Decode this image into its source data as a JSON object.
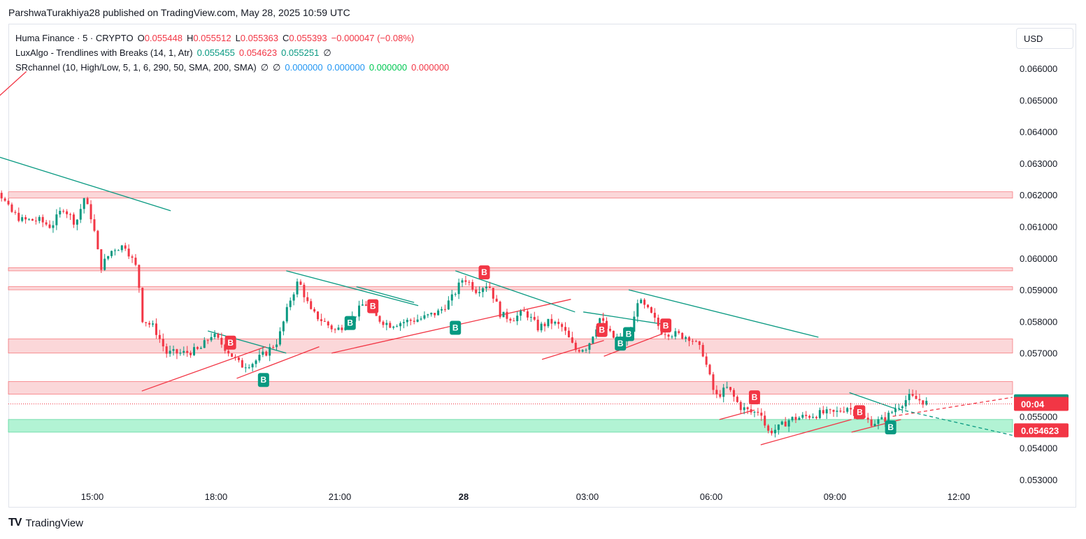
{
  "header": {
    "text": "ParshwaTurakhiya28 published on TradingView.com, May 28, 2025 10:59 UTC"
  },
  "legend": {
    "symbol": "Huma Finance · 5 · CRYPTO",
    "o_label": "O",
    "o_value": "0.055448",
    "h_label": "H",
    "h_value": "0.055512",
    "l_label": "L",
    "l_value": "0.055363",
    "c_label": "C",
    "c_value": "0.055393",
    "change": "−0.000047 (−0.08%)",
    "lux_name": "LuxAlgo - Trendlines with Breaks (14, 1, Atr)",
    "lux_v1": "0.055455",
    "lux_v2": "0.054623",
    "lux_v3": "0.055251",
    "lux_sym": "∅",
    "sr_name": "SRchannel (10, High/Low, 5, 1, 6, 290, 50, SMA, 200, SMA)",
    "sr_sym1": "∅",
    "sr_sym2": "∅",
    "sr_v1": "0.000000",
    "sr_v2": "0.000000",
    "sr_v3": "0.000000",
    "sr_v4": "0.000000"
  },
  "currency": "USD",
  "footer": {
    "brand": "TradingView",
    "mark": "TV"
  },
  "colors": {
    "up": "#089981",
    "down": "#f23645",
    "zone_red": "#f8b6b9",
    "zone_green": "#9ff0c9",
    "trend_teal": "#089981",
    "trend_red": "#f23645"
  },
  "chart_data": {
    "type": "candlestick",
    "y_axis": {
      "ticks": [
        "0.066000",
        "0.065000",
        "0.064000",
        "0.063000",
        "0.062000",
        "0.061000",
        "0.060000",
        "0.059000",
        "0.058000",
        "0.057000",
        "0.055000",
        "0.054000",
        "0.053000"
      ],
      "ylim": [
        0.0526,
        0.0673
      ]
    },
    "x_axis": {
      "ticks": [
        "15:00",
        "18:00",
        "21:00",
        "28",
        "03:00",
        "06:00",
        "09:00",
        "12:00"
      ]
    },
    "price_tags": [
      {
        "value": 0.055455,
        "label": "0.055455",
        "color": "#089981"
      },
      {
        "value": 0.055393,
        "label": "00:04",
        "color": "#f23645"
      },
      {
        "value": 0.054623,
        "label": "0.054623",
        "color": "#f23645"
      }
    ],
    "zones": [
      {
        "from": 0.0619,
        "to": 0.0621,
        "color": "red"
      },
      {
        "from": 0.0596,
        "to": 0.0597,
        "color": "red"
      },
      {
        "from": 0.059,
        "to": 0.0591,
        "color": "red"
      },
      {
        "from": 0.057,
        "to": 0.05745,
        "color": "red"
      },
      {
        "from": 0.0557,
        "to": 0.0561,
        "color": "red"
      },
      {
        "from": 0.0545,
        "to": 0.0549,
        "color": "green"
      }
    ],
    "signals": [
      {
        "t": 18.35,
        "price": 0.05733,
        "type": "B",
        "side": "down"
      },
      {
        "t": 19.15,
        "price": 0.05615,
        "type": "B",
        "side": "up"
      },
      {
        "t": 21.25,
        "price": 0.05795,
        "type": "B",
        "side": "up"
      },
      {
        "t": 21.8,
        "price": 0.05848,
        "type": "B",
        "side": "down"
      },
      {
        "t": 23.8,
        "price": 0.0578,
        "type": "B",
        "side": "up"
      },
      {
        "t": 24.5,
        "price": 0.05955,
        "type": "B",
        "side": "down"
      },
      {
        "t": 27.35,
        "price": 0.05773,
        "type": "B",
        "side": "down"
      },
      {
        "t": 27.8,
        "price": 0.0573,
        "type": "B",
        "side": "up"
      },
      {
        "t": 28.0,
        "price": 0.0576,
        "type": "B",
        "side": "up"
      },
      {
        "t": 28.9,
        "price": 0.05787,
        "type": "B",
        "side": "down"
      },
      {
        "t": 31.05,
        "price": 0.0556,
        "type": "B",
        "side": "down"
      },
      {
        "t": 33.6,
        "price": 0.05513,
        "type": "B",
        "side": "down"
      },
      {
        "t": 34.35,
        "price": 0.05465,
        "type": "B",
        "side": "up"
      }
    ],
    "trendlines": [
      {
        "color": "red",
        "t1": 12.0,
        "p1": 0.06425,
        "t2": 13.4,
        "p2": 0.0659
      },
      {
        "color": "teal",
        "t1": 12.25,
        "p1": 0.0634,
        "t2": 16.9,
        "p2": 0.0615
      },
      {
        "color": "teal",
        "t1": 17.8,
        "p1": 0.0577,
        "t2": 19.7,
        "p2": 0.057
      },
      {
        "color": "red",
        "t1": 16.2,
        "p1": 0.0558,
        "t2": 19.2,
        "p2": 0.0572
      },
      {
        "color": "teal",
        "t1": 19.7,
        "p1": 0.0596,
        "t2": 22.9,
        "p2": 0.0585
      },
      {
        "color": "red",
        "t1": 18.5,
        "p1": 0.0562,
        "t2": 20.5,
        "p2": 0.0572
      },
      {
        "color": "teal",
        "t1": 21.4,
        "p1": 0.0591,
        "t2": 22.8,
        "p2": 0.0586
      },
      {
        "color": "red",
        "t1": 20.8,
        "p1": 0.057,
        "t2": 26.6,
        "p2": 0.0587
      },
      {
        "color": "teal",
        "t1": 23.8,
        "p1": 0.0596,
        "t2": 26.7,
        "p2": 0.0583
      },
      {
        "color": "red",
        "t1": 25.9,
        "p1": 0.0568,
        "t2": 27.4,
        "p2": 0.0574
      },
      {
        "color": "teal",
        "t1": 26.9,
        "p1": 0.0583,
        "t2": 28.9,
        "p2": 0.0579
      },
      {
        "color": "red",
        "t1": 27.4,
        "p1": 0.0569,
        "t2": 28.8,
        "p2": 0.0576
      },
      {
        "color": "teal",
        "t1": 28.0,
        "p1": 0.059,
        "t2": 32.6,
        "p2": 0.0575
      },
      {
        "color": "red",
        "t1": 30.2,
        "p1": 0.0549,
        "t2": 31.05,
        "p2": 0.0552
      },
      {
        "color": "red",
        "t1": 31.2,
        "p1": 0.0541,
        "t2": 33.4,
        "p2": 0.0549
      },
      {
        "color": "teal",
        "t1": 33.35,
        "p1": 0.05575,
        "t2": 34.4,
        "p2": 0.05527
      },
      {
        "color": "red",
        "t1": 33.4,
        "p1": 0.0545,
        "t2": 34.6,
        "p2": 0.0549
      },
      {
        "color": "red",
        "t1": 34.4,
        "p1": 0.055,
        "t2": 37.3,
        "p2": 0.0556,
        "dashed": true
      },
      {
        "color": "teal",
        "t1": 34.4,
        "p1": 0.05527,
        "t2": 37.3,
        "p2": 0.0544,
        "dashed": true
      }
    ]
  }
}
